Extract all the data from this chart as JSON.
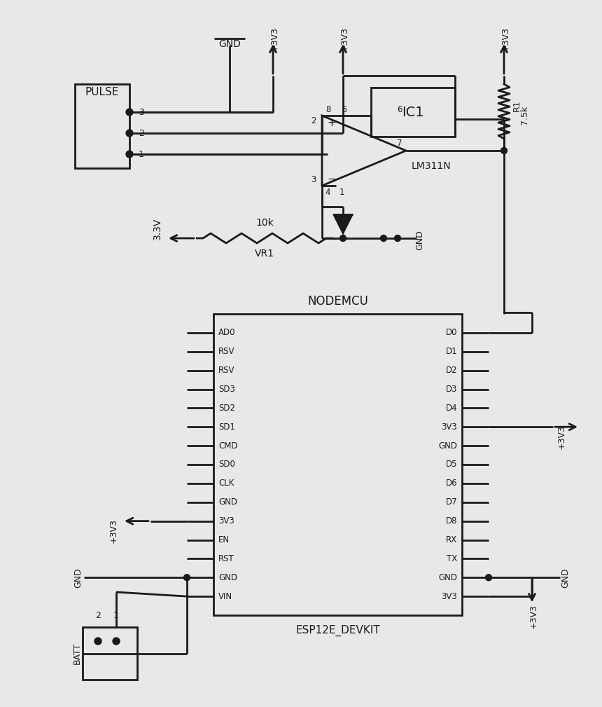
{
  "bg_color": "#e8e8e8",
  "line_color": "#1a1a1a",
  "pulse_label": "PULSE",
  "ic_label": "IC1",
  "ic_sublabel": "LM311N",
  "nodemcu_label": "NODEMCU",
  "nodemcu_sublabel": "ESP12E_DEVKIT",
  "left_pins": [
    "AD0",
    "RSV",
    "RSV",
    "SD3",
    "SD2",
    "SD1",
    "CMD",
    "SD0",
    "CLK",
    "GND",
    "3V3",
    "EN",
    "RST",
    "GND",
    "VIN"
  ],
  "right_pins": [
    "D0",
    "D1",
    "D2",
    "D3",
    "D4",
    "3V3",
    "GND",
    "D5",
    "D6",
    "D7",
    "D8",
    "RX",
    "TX",
    "GND",
    "3V3"
  ],
  "batt_label": "BATT",
  "gnd_label": "GND",
  "vr1_label": "VR1",
  "r1_label": "R1",
  "r1_val": "7.5k",
  "vr1_val": "10k",
  "v33_label": "3.3V",
  "v33_sub": "3.3V"
}
